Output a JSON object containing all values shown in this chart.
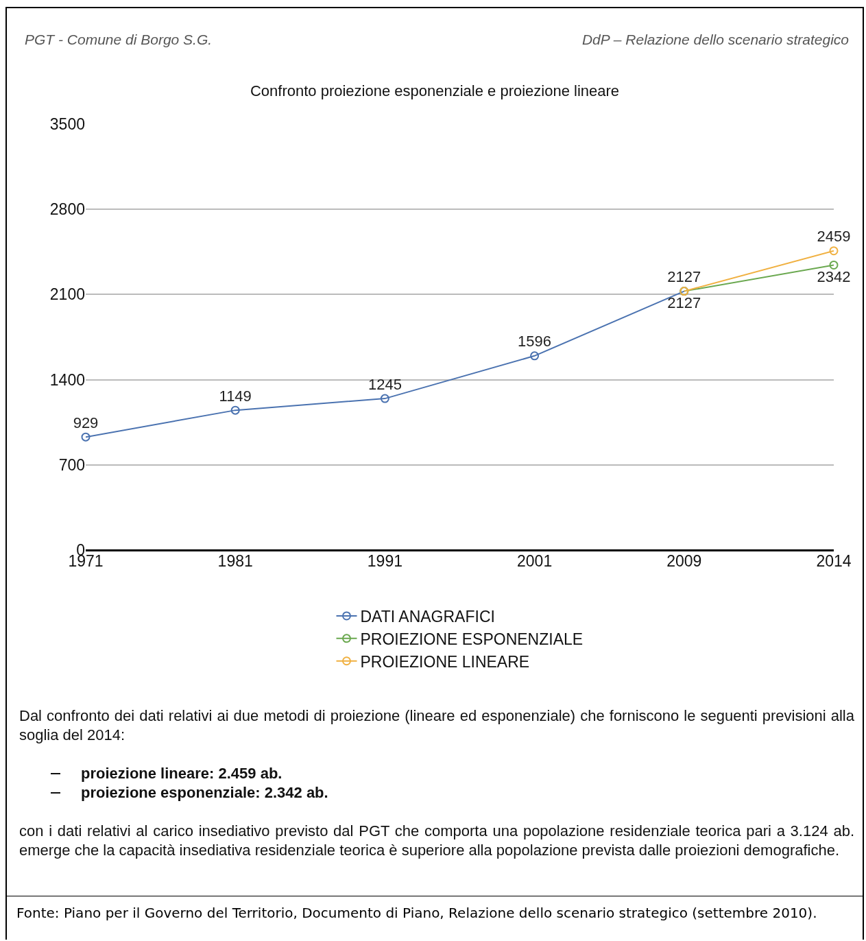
{
  "chart_data": {
    "type": "line",
    "title": "Confronto proiezione esponenziale e proiezione lineare",
    "categories": [
      "1971",
      "1981",
      "1991",
      "2001",
      "2009",
      "2014"
    ],
    "series": [
      {
        "name": "DATI ANAGRAFICI",
        "color": "#4a72b0",
        "values": [
          929,
          1149,
          1245,
          1596,
          2127,
          null
        ],
        "value_labels": [
          "929",
          "1149",
          "1245",
          "1596",
          "2127",
          null
        ]
      },
      {
        "name": "PROIEZIONE ESPONENZIALE",
        "color": "#6aa84f",
        "values": [
          null,
          null,
          null,
          null,
          2127,
          2342
        ],
        "value_labels": [
          null,
          null,
          null,
          null,
          "2127",
          "2342"
        ]
      },
      {
        "name": "PROIEZIONE LINEARE",
        "color": "#f0b040",
        "values": [
          null,
          null,
          null,
          null,
          2127,
          2459
        ],
        "value_labels": [
          null,
          null,
          null,
          null,
          null,
          "2459"
        ]
      }
    ],
    "ylim": [
      0,
      3500
    ],
    "yticks": [
      0,
      700,
      1400,
      2100,
      2800,
      3500
    ],
    "grid": "y",
    "legend": "bottom",
    "marker": "circle",
    "line_style": "solid",
    "annotations": [
      "PGT - Comune di Borgo S.G.",
      "DdP – Relazione dello scenario strategico",
      "Dal confronto dei dati relativi ai due metodi di proiezione (lineare ed esponenziale) che forniscono le seguenti previsioni alla soglia del 2014:",
      "proiezione lineare: 2.459 ab.",
      "proiezione esponenziale: 2.342 ab.",
      "con i dati relativi al carico insediativo previsto dal PGT che comporta una popolazione residenziale teorica pari a 3.124 ab. emerge che la capacità insediativa residenziale teorica è superiore alla popolazione prevista dalle proiezioni demografiche.",
      "Fonte: Piano per il Governo del Territorio, Documento di Piano, Relazione dello scenario strategico (settembre 2010)."
    ]
  }
}
